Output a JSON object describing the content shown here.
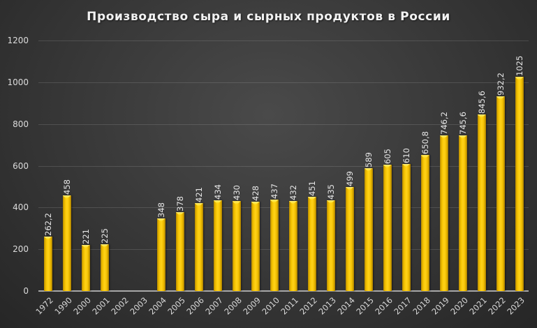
{
  "chart_data": {
    "type": "bar",
    "title": "Производство сыра и сырных продуктов в России",
    "xlabel": "",
    "ylabel": "",
    "ylim": [
      0,
      1200
    ],
    "yticks": [
      0,
      200,
      400,
      600,
      800,
      1000,
      1200
    ],
    "grid": true,
    "legend": null,
    "bar_color": "#FFC800",
    "categories": [
      "1972",
      "1990",
      "2000",
      "2001",
      "2002",
      "2003",
      "2004",
      "2005",
      "2006",
      "2007",
      "2008",
      "2009",
      "2010",
      "2011",
      "2012",
      "2013",
      "2014",
      "2015",
      "2016",
      "2017",
      "2018",
      "2019",
      "2020",
      "2021",
      "2022",
      "2023"
    ],
    "values": [
      262.2,
      458,
      221,
      225,
      null,
      null,
      348,
      378,
      421,
      434,
      430,
      428,
      437,
      432,
      451,
      435,
      499,
      589,
      605,
      610,
      650.8,
      746.2,
      745.6,
      845.6,
      932.2,
      1025
    ],
    "data_labels": [
      "262,2",
      "458",
      "221",
      "225",
      "",
      "",
      "348",
      "378",
      "421",
      "434",
      "430",
      "428",
      "437",
      "432",
      "451",
      "435",
      "499",
      "589",
      "605",
      "610",
      "650,8",
      "746,2",
      "745,6",
      "845,6",
      "932,2",
      "1025"
    ]
  }
}
